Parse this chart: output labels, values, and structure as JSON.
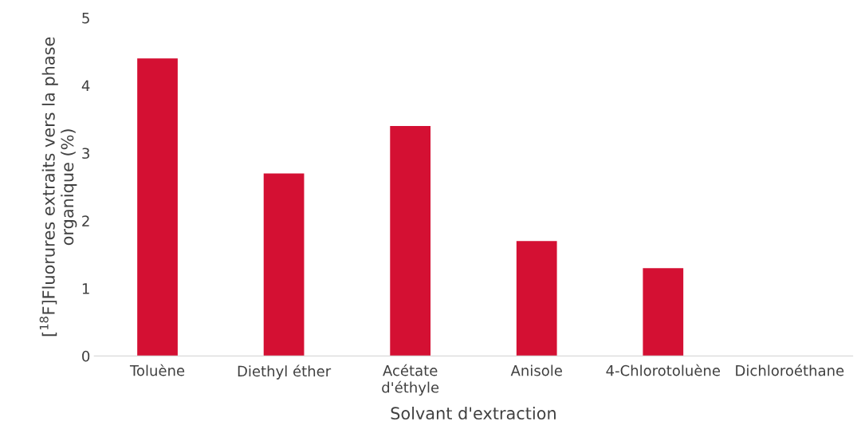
{
  "chart_data": {
    "type": "bar",
    "xlabel": "Solvant d'extraction",
    "ylabel": "[$^{18}$F]Fluorures extraits vers la phase organique (%)",
    "categories": [
      "Toluène",
      "Diethyl éther",
      "Acétate d'éthyle",
      "Anisole",
      "4-Chlorotoluène",
      "Dichloroéthane"
    ],
    "values": [
      4.4,
      2.7,
      3.4,
      1.7,
      1.3,
      0
    ],
    "color": "#d41033",
    "ylim": [
      0,
      5
    ],
    "yticks": [
      0,
      1,
      2,
      3,
      4,
      5
    ],
    "grid": false,
    "legend": false
  }
}
